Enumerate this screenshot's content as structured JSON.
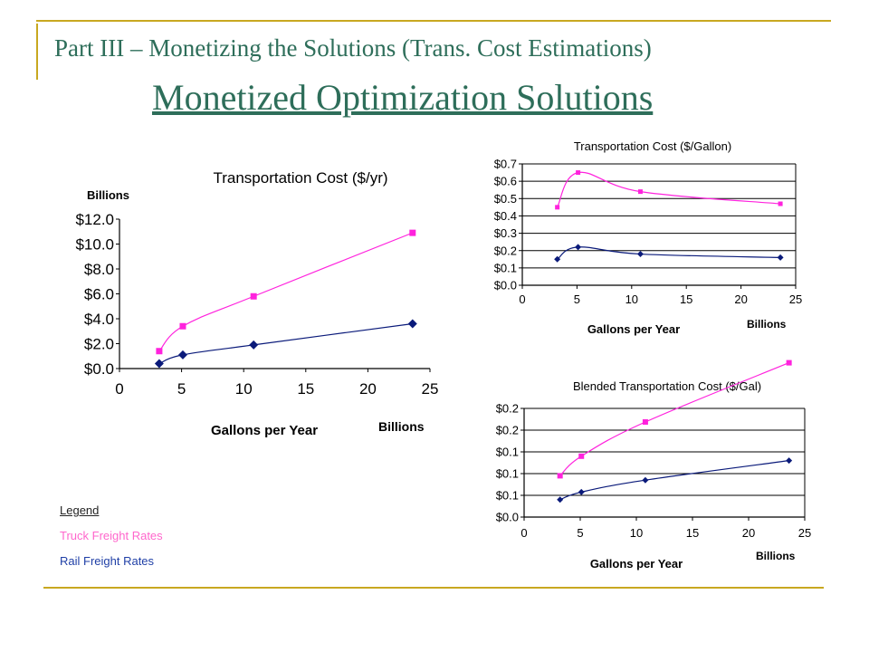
{
  "slide": {
    "part_title": "Part III – Monetizing the Solutions (Trans. Cost Estimations)",
    "main_title": "Monetized Optimization Solutions"
  },
  "legend": {
    "heading": "Legend",
    "items": [
      {
        "label": "Truck Freight Rates",
        "color": "#ff66cc"
      },
      {
        "label": "Rail Freight Rates",
        "color": "#1f3fa6"
      }
    ]
  },
  "colors": {
    "truck": "#ff22dd",
    "rail": "#0a1a7a",
    "grid": "#000000"
  },
  "chart_data": [
    {
      "type": "line",
      "title": "Transportation Cost ($/yr)",
      "xlabel": "Gallons per Year",
      "x_unit_label": "Billions",
      "y_unit_label": "Billions",
      "ylabel": "",
      "xlim": [
        0,
        25
      ],
      "ylim": [
        0,
        12
      ],
      "x_ticks": [
        "0",
        "5",
        "10",
        "15",
        "20",
        "25"
      ],
      "y_ticks": [
        "$0.0",
        "$2.0",
        "$4.0",
        "$6.0",
        "$8.0",
        "$10.0",
        "$12.0"
      ],
      "grid": false,
      "series": [
        {
          "key": "truck",
          "x": [
            3.2,
            5.1,
            10.8,
            23.6
          ],
          "values": [
            1.4,
            3.4,
            5.8,
            10.9
          ]
        },
        {
          "key": "rail",
          "x": [
            3.2,
            5.1,
            10.8,
            23.6
          ],
          "values": [
            0.4,
            1.1,
            1.9,
            3.6
          ]
        }
      ]
    },
    {
      "type": "line",
      "title": "Transportation Cost ($/Gallon)",
      "xlabel": "Gallons per Year",
      "x_unit_label": "Billions",
      "ylabel": "",
      "xlim": [
        0,
        25
      ],
      "ylim": [
        0,
        0.7
      ],
      "x_ticks": [
        "0",
        "5",
        "10",
        "15",
        "20",
        "25"
      ],
      "y_ticks": [
        "$0.0",
        "$0.1",
        "$0.2",
        "$0.3",
        "$0.4",
        "$0.5",
        "$0.6",
        "$0.7"
      ],
      "grid": true,
      "series": [
        {
          "key": "truck",
          "x": [
            3.2,
            5.1,
            10.8,
            23.6
          ],
          "values": [
            0.45,
            0.65,
            0.54,
            0.47
          ]
        },
        {
          "key": "rail",
          "x": [
            3.2,
            5.1,
            10.8,
            23.6
          ],
          "values": [
            0.15,
            0.22,
            0.18,
            0.16
          ]
        }
      ]
    },
    {
      "type": "line",
      "title": "Blended Transportation Cost ($/Gal)",
      "xlabel": "Gallons per Year",
      "x_unit_label": "Billions",
      "ylabel": "",
      "xlim": [
        0,
        25
      ],
      "ylim": [
        0,
        0.2
      ],
      "x_ticks": [
        "0",
        "5",
        "10",
        "15",
        "20",
        "25"
      ],
      "y_ticks": [
        "$0.0",
        "$0.1",
        "$0.1",
        "$0.1",
        "$0.2",
        "$0.2"
      ],
      "grid": true,
      "series": [
        {
          "key": "truck",
          "x": [
            3.2,
            5.1,
            10.8,
            23.6
          ],
          "values": [
            0.076,
            0.112,
            0.175,
            0.284
          ]
        },
        {
          "key": "rail",
          "x": [
            3.2,
            5.1,
            10.8,
            23.6
          ],
          "values": [
            0.032,
            0.046,
            0.068,
            0.104
          ]
        }
      ]
    }
  ]
}
